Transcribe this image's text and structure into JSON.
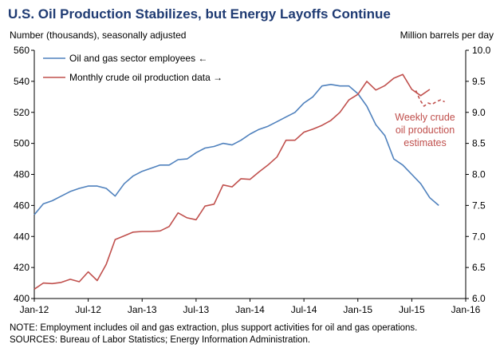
{
  "header": {
    "title": "U.S. Oil Production Stabilizes, but Energy Layoffs Continue",
    "left_unit": "Number (thousands), seasonally adjusted",
    "right_unit": "Million  barrels per day"
  },
  "notes": {
    "note": "NOTE: Employment includes oil and gas extraction, plus support activities for oil and gas operations.",
    "sources": "SOURCES: Bureau of Labor Statistics; Energy Information Administration."
  },
  "colors": {
    "employees": "#4f81bd",
    "production": "#c0504d",
    "title": "#1f3b73"
  },
  "chart_data": {
    "type": "line",
    "title": "U.S. Oil Production Stabilizes, but Energy Layoffs Continue",
    "ylabel_left": "Number (thousands), seasonally adjusted",
    "ylabel_right": "Million  barrels per day",
    "xlim": [
      "2012-01",
      "2016-01"
    ],
    "ylim_left": [
      400,
      560
    ],
    "ylim_right": [
      6.0,
      10.0
    ],
    "x_ticks": [
      "Jan-12",
      "Jul-12",
      "Jan-13",
      "Jul-13",
      "Jan-14",
      "Jul-14",
      "Jan-15",
      "Jul-15",
      "Jan-16"
    ],
    "y_ticks_left": [
      "400",
      "420",
      "440",
      "460",
      "480",
      "500",
      "520",
      "540",
      "560"
    ],
    "y_ticks_right": [
      "6.0",
      "6.5",
      "7.0",
      "7.5",
      "8.0",
      "8.5",
      "9.0",
      "9.5",
      "10.0"
    ],
    "legend_position": "top-left",
    "series": [
      {
        "name": "Oil and gas sector employees",
        "legend_label": "Oil and gas sector employees ←",
        "axis": "left",
        "style": "solid",
        "x": [
          "2012-01",
          "2012-02",
          "2012-03",
          "2012-04",
          "2012-05",
          "2012-06",
          "2012-07",
          "2012-08",
          "2012-09",
          "2012-10",
          "2012-11",
          "2012-12",
          "2013-01",
          "2013-02",
          "2013-03",
          "2013-04",
          "2013-05",
          "2013-06",
          "2013-07",
          "2013-08",
          "2013-09",
          "2013-10",
          "2013-11",
          "2013-12",
          "2014-01",
          "2014-02",
          "2014-03",
          "2014-04",
          "2014-05",
          "2014-06",
          "2014-07",
          "2014-08",
          "2014-09",
          "2014-10",
          "2014-11",
          "2014-12",
          "2015-01",
          "2015-02",
          "2015-03",
          "2015-04",
          "2015-05",
          "2015-06",
          "2015-07",
          "2015-08",
          "2015-09",
          "2015-10"
        ],
        "values": [
          454,
          461,
          463,
          466,
          469,
          471,
          472.5,
          472.5,
          471,
          466,
          474,
          479,
          482,
          484,
          486,
          486,
          489.5,
          490,
          494,
          497,
          498,
          500,
          499,
          502,
          506,
          509,
          511,
          514,
          517,
          520,
          526,
          530,
          537,
          538,
          537,
          537,
          532,
          524,
          512,
          505,
          490,
          486,
          480,
          474,
          465,
          460
        ]
      },
      {
        "name": "Monthly crude oil production data",
        "legend_label": "Monthly crude oil production data →",
        "axis": "right",
        "style": "solid",
        "x": [
          "2012-01",
          "2012-02",
          "2012-03",
          "2012-04",
          "2012-05",
          "2012-06",
          "2012-07",
          "2012-08",
          "2012-09",
          "2012-10",
          "2012-11",
          "2012-12",
          "2013-01",
          "2013-02",
          "2013-03",
          "2013-04",
          "2013-05",
          "2013-06",
          "2013-07",
          "2013-08",
          "2013-09",
          "2013-10",
          "2013-11",
          "2013-12",
          "2014-01",
          "2014-02",
          "2014-03",
          "2014-04",
          "2014-05",
          "2014-06",
          "2014-07",
          "2014-08",
          "2014-09",
          "2014-10",
          "2014-11",
          "2014-12",
          "2015-01",
          "2015-02",
          "2015-03",
          "2015-04",
          "2015-05",
          "2015-06",
          "2015-07",
          "2015-08",
          "2015-09"
        ],
        "values": [
          6.15,
          6.25,
          6.24,
          6.26,
          6.31,
          6.27,
          6.43,
          6.29,
          6.55,
          6.95,
          7.01,
          7.07,
          7.08,
          7.08,
          7.09,
          7.16,
          7.38,
          7.3,
          7.27,
          7.49,
          7.52,
          7.83,
          7.8,
          7.93,
          7.92,
          8.04,
          8.15,
          8.28,
          8.55,
          8.55,
          8.68,
          8.73,
          8.79,
          8.87,
          9.0,
          9.2,
          9.29,
          9.5,
          9.36,
          9.43,
          9.55,
          9.61,
          9.37,
          9.27,
          9.37
        ]
      },
      {
        "name": "Weekly crude oil production estimates",
        "axis": "right",
        "style": "dashed",
        "x": [
          "2015-07-15",
          "2015-07-29",
          "2015-08-12",
          "2015-08-26",
          "2015-09-09",
          "2015-09-23",
          "2015-10-07",
          "2015-10-21"
        ],
        "values": [
          9.35,
          9.2,
          9.1,
          9.15,
          9.13,
          9.17,
          9.2,
          9.17
        ]
      }
    ],
    "annotations": [
      "Weekly crude",
      "oil production",
      "estimates"
    ]
  }
}
